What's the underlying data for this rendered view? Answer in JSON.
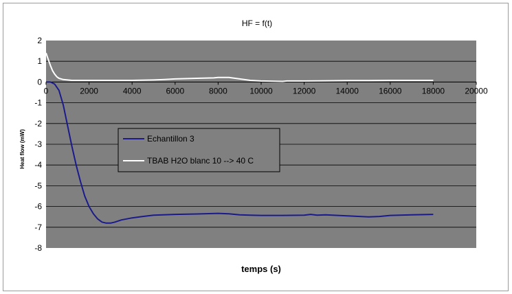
{
  "chart_data": {
    "type": "line",
    "title": "HF = f(t)",
    "xlabel": "temps (s)",
    "ylabel": "Heat flow (mW)",
    "xlim": [
      0,
      20000
    ],
    "ylim": [
      -8,
      2
    ],
    "x_ticks": [
      0,
      2000,
      4000,
      6000,
      8000,
      10000,
      12000,
      14000,
      16000,
      18000,
      20000
    ],
    "y_ticks": [
      2,
      1,
      0,
      -1,
      -2,
      -3,
      -4,
      -5,
      -6,
      -7,
      -8
    ],
    "grid": true,
    "plot_background": "#808080",
    "legend_position": "center-left",
    "series": [
      {
        "name": "Echantillon 3",
        "color": "#1a1a8c",
        "x": [
          0,
          200,
          400,
          600,
          800,
          1000,
          1200,
          1400,
          1600,
          1800,
          2000,
          2200,
          2400,
          2600,
          2800,
          3000,
          3200,
          3500,
          4000,
          4500,
          5000,
          6000,
          7000,
          8000,
          8500,
          9000,
          9500,
          10000,
          11000,
          12000,
          12300,
          12600,
          13000,
          14000,
          15000,
          15500,
          16000,
          17000,
          18000
        ],
        "y": [
          0.0,
          0.0,
          -0.1,
          -0.4,
          -1.1,
          -2.1,
          -3.1,
          -4.0,
          -4.8,
          -5.5,
          -6.0,
          -6.35,
          -6.6,
          -6.75,
          -6.8,
          -6.8,
          -6.75,
          -6.65,
          -6.55,
          -6.48,
          -6.42,
          -6.38,
          -6.36,
          -6.33,
          -6.35,
          -6.4,
          -6.42,
          -6.43,
          -6.43,
          -6.42,
          -6.38,
          -6.42,
          -6.4,
          -6.45,
          -6.5,
          -6.48,
          -6.43,
          -6.4,
          -6.38
        ]
      },
      {
        "name": "TBAB H2O blanc 10 --> 40 C",
        "color": "#ffffff",
        "x": [
          0,
          100,
          200,
          300,
          400,
          500,
          600,
          800,
          1000,
          1200,
          1500,
          2000,
          3000,
          4000,
          5000,
          5500,
          6000,
          7000,
          7800,
          8000,
          8500,
          9000,
          9500,
          10000,
          11000,
          11200,
          12000,
          13000,
          14000,
          15000,
          16000,
          17000,
          18000
        ],
        "y": [
          1.4,
          1.1,
          0.8,
          0.55,
          0.38,
          0.25,
          0.18,
          0.12,
          0.1,
          0.08,
          0.08,
          0.08,
          0.08,
          0.08,
          0.1,
          0.12,
          0.15,
          0.18,
          0.2,
          0.22,
          0.22,
          0.15,
          0.08,
          0.05,
          0.03,
          0.05,
          0.05,
          0.06,
          0.07,
          0.07,
          0.08,
          0.08,
          0.08
        ]
      }
    ]
  }
}
